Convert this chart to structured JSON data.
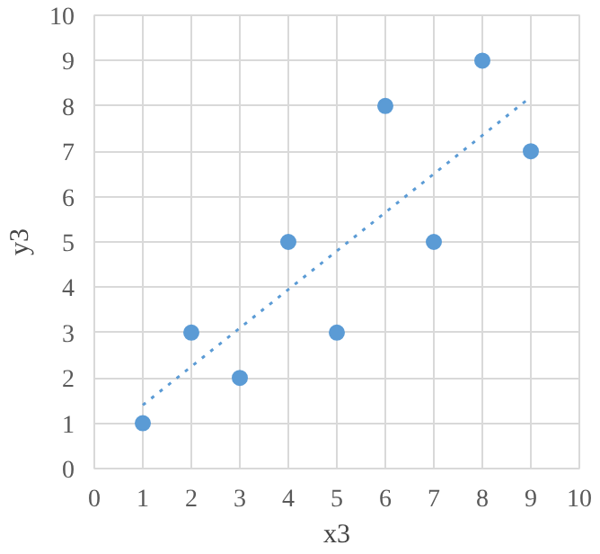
{
  "chart_data": {
    "type": "scatter",
    "xlabel": "x3",
    "ylabel": "y3",
    "xlim": [
      0,
      10
    ],
    "ylim": [
      0,
      10
    ],
    "xticks": [
      0,
      1,
      2,
      3,
      4,
      5,
      6,
      7,
      8,
      9,
      10
    ],
    "yticks": [
      0,
      1,
      2,
      3,
      4,
      5,
      6,
      7,
      8,
      9,
      10
    ],
    "grid": true,
    "series": [
      {
        "color": "#5b9bd5",
        "marker": "circle",
        "x": [
          1,
          2,
          3,
          4,
          5,
          6,
          7,
          8,
          9
        ],
        "values": [
          1,
          3,
          2,
          5,
          3,
          8,
          5,
          9,
          7
        ]
      },
      {
        "type": "line",
        "color": "#5b9bd5",
        "line_style": "dotted",
        "marker": "none",
        "x": [
          1,
          9
        ],
        "values": [
          1.4,
          8.2
        ]
      }
    ]
  }
}
